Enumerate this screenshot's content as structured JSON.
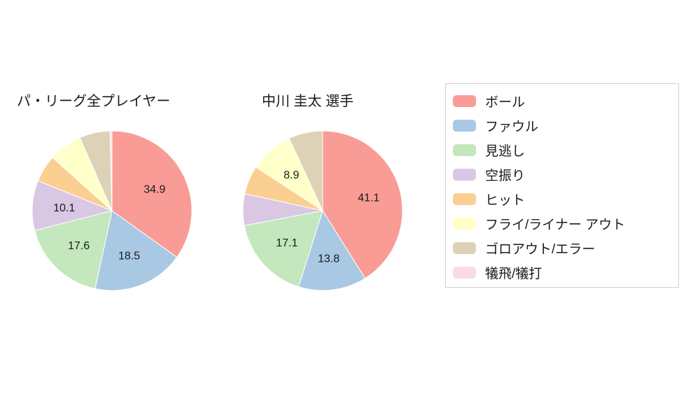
{
  "chart_data": [
    {
      "type": "pie",
      "title": "パ・リーグ全プレイヤー",
      "labels": [
        "ボール",
        "ファウル",
        "見逃し",
        "空振り",
        "ヒット",
        "フライ/ライナー アウト",
        "ゴロアウト/エラー",
        "犠飛/犠打"
      ],
      "values": [
        34.9,
        18.5,
        17.6,
        10.1,
        5.5,
        6.8,
        6.2,
        0.4
      ],
      "displayed_value_labels": [
        "34.9",
        "18.5",
        "17.6",
        "10.1",
        "",
        "",
        "",
        ""
      ],
      "colors": [
        "#f99c95",
        "#a9c8e4",
        "#c4e7bd",
        "#d9c7e4",
        "#fbcf92",
        "#ffffc9",
        "#ddd2b5",
        "#fbd9eb"
      ],
      "start_angle_deg": 0,
      "direction": "clockwise",
      "slice_border_color": "#ffffff",
      "legend_position": "right"
    },
    {
      "type": "pie",
      "title": "中川 圭太 選手",
      "labels": [
        "ボール",
        "ファウル",
        "見逃し",
        "空振り",
        "ヒット",
        "フライ/ライナー アウト",
        "ゴロアウト/エラー",
        "犠飛/犠打"
      ],
      "values": [
        41.1,
        13.8,
        17.1,
        6.4,
        5.8,
        8.9,
        6.9,
        0.0
      ],
      "displayed_value_labels": [
        "41.1",
        "13.8",
        "17.1",
        "",
        "",
        "8.9",
        "",
        ""
      ],
      "colors": [
        "#f99c95",
        "#a9c8e4",
        "#c4e7bd",
        "#d9c7e4",
        "#fbcf92",
        "#ffffc9",
        "#ddd2b5",
        "#fbd9eb"
      ],
      "start_angle_deg": 0,
      "direction": "clockwise",
      "slice_border_color": "#ffffff",
      "legend_position": "right"
    }
  ],
  "legend": {
    "items": [
      {
        "label": "ボール",
        "color": "#f99c95"
      },
      {
        "label": "ファウル",
        "color": "#a9c8e4"
      },
      {
        "label": "見逃し",
        "color": "#c4e7bd"
      },
      {
        "label": "空振り",
        "color": "#d9c7e4"
      },
      {
        "label": "ヒット",
        "color": "#fbcf92"
      },
      {
        "label": "フライ/ライナー アウト",
        "color": "#ffffc9"
      },
      {
        "label": "ゴロアウト/エラー",
        "color": "#ddd2b5"
      },
      {
        "label": "犠飛/犠打",
        "color": "#fbd9eb"
      }
    ]
  }
}
